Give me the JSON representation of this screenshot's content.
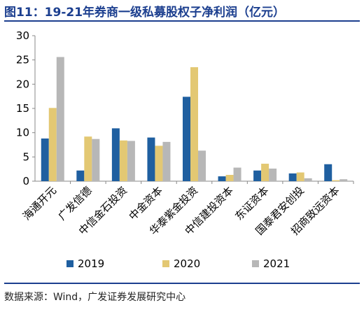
{
  "title": "图11：19-21年券商一级私募股权子净利润（亿元）",
  "source": "数据来源：Wind，广发证券发展研究中心",
  "chart_data": {
    "type": "bar",
    "categories": [
      "海通开元",
      "广发信德",
      "中信金石投资",
      "中金资本",
      "华泰紫金投资",
      "中信建投资本",
      "东证资本",
      "国泰君安创投",
      "招商致远资本"
    ],
    "series": [
      {
        "name": "2019",
        "color": "#1f5fa0",
        "values": [
          8.8,
          2.2,
          10.9,
          9.0,
          17.4,
          1.0,
          2.2,
          1.6,
          3.5
        ]
      },
      {
        "name": "2020",
        "color": "#e3c873",
        "values": [
          15.1,
          9.2,
          8.4,
          7.3,
          23.5,
          1.3,
          3.6,
          1.8,
          0.2
        ]
      },
      {
        "name": "2021",
        "color": "#b7b7b7",
        "values": [
          25.6,
          8.7,
          8.3,
          8.1,
          6.3,
          2.8,
          2.6,
          0.6,
          0.4
        ]
      }
    ],
    "ylim": [
      0,
      30
    ],
    "yticks": [
      0,
      5,
      10,
      15,
      20,
      25,
      30
    ],
    "grid": false,
    "legend_position": "bottom"
  }
}
